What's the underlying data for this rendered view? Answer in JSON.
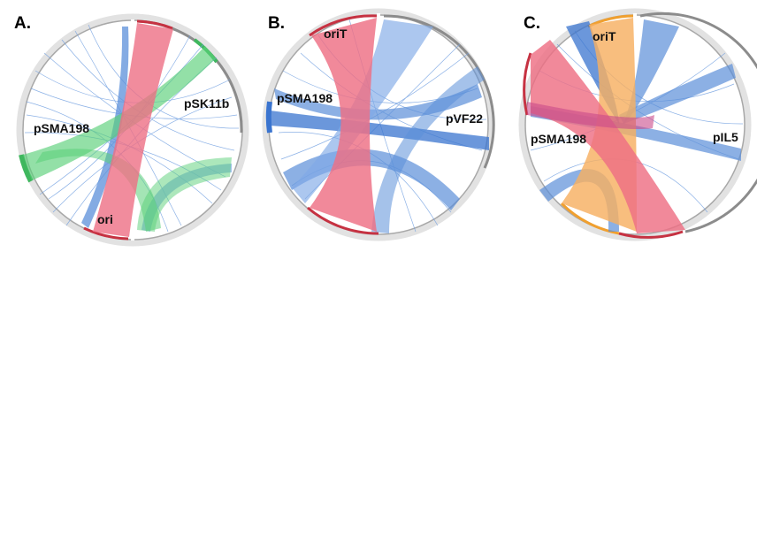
{
  "panels": [
    {
      "letter": "A.",
      "labels": [
        "pSMA198",
        "pSK11b",
        "ori"
      ],
      "colors": {
        "red": "#ee6f84",
        "green": "#59cf78",
        "blue": "#5b8fd9",
        "gray": "#8c8c8c"
      }
    },
    {
      "letter": "B.",
      "labels": [
        "oriT",
        "pSMA198",
        "pVF22"
      ],
      "colors": {
        "red": "#ee6f84",
        "blue": "#5b8fd9",
        "gray": "#8c8c8c"
      }
    },
    {
      "letter": "C.",
      "labels": [
        "oriT",
        "pSMA198",
        "pIL5"
      ],
      "colors": {
        "red": "#ee6f84",
        "orange": "#f7b061",
        "blue": "#5b8fd9",
        "gray": "#8c8c8c"
      }
    }
  ]
}
